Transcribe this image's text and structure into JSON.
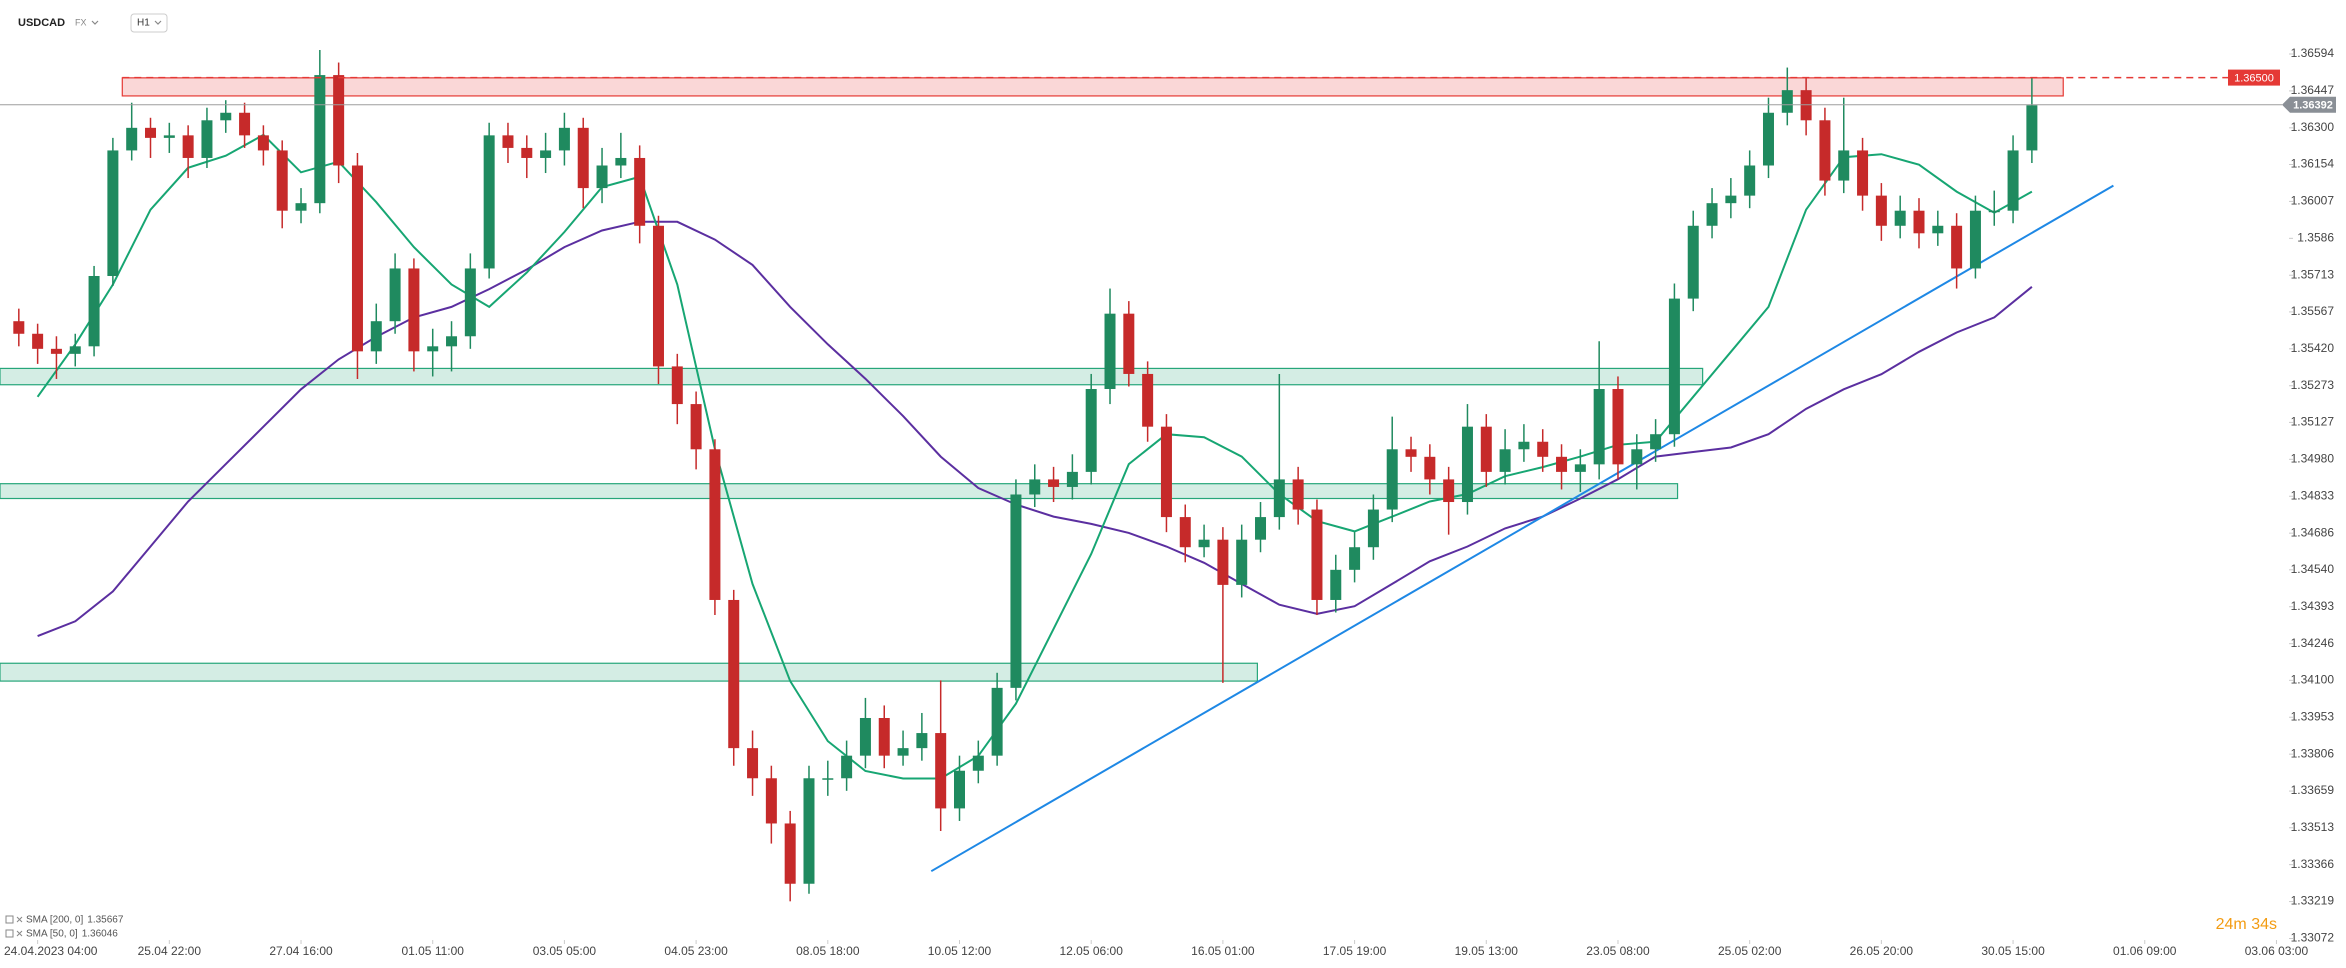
{
  "header": {
    "symbol": "USDCAD",
    "market": "FX",
    "timeframe": "H1"
  },
  "countdown": "24m 34s",
  "chart_data": {
    "type": "candlestick",
    "xlim": [
      -12,
      718
    ],
    "ylim": [
      1.33066,
      1.36809
    ],
    "yticks": [
      1.36594,
      1.36447,
      {
        "value": 1.363,
        "label": "1.36300"
      },
      1.36154,
      1.36007,
      1.3586,
      1.35713,
      1.35567,
      {
        "value": 1.3542,
        "label": "1.35420"
      },
      1.35273,
      1.35127,
      {
        "value": 1.3498,
        "label": "1.34980"
      },
      1.34833,
      1.34686,
      {
        "value": 1.3454,
        "label": "1.34540"
      },
      1.34393,
      1.34246,
      {
        "value": 1.341,
        "label": "1.34100"
      },
      1.33953,
      1.33806,
      1.33659,
      1.33513,
      1.33366,
      1.33219,
      1.33072
    ],
    "xticks": [
      {
        "value": 0,
        "label": "24.04.2023 04:00"
      },
      {
        "value": 42,
        "label": "25.04 22:00"
      },
      {
        "value": 84,
        "label": "27.04 16:00"
      },
      {
        "value": 126,
        "label": "01.05 11:00"
      },
      {
        "value": 168,
        "label": "03.05 05:00"
      },
      {
        "value": 210,
        "label": "04.05 23:00"
      },
      {
        "value": 252,
        "label": "08.05 18:00"
      },
      {
        "value": 294,
        "label": "10.05 12:00"
      },
      {
        "value": 336,
        "label": "12.05 06:00"
      },
      {
        "value": 378,
        "label": "16.05 01:00"
      },
      {
        "value": 420,
        "label": "17.05 19:00"
      },
      {
        "value": 462,
        "label": "19.05 13:00"
      },
      {
        "value": 504,
        "label": "23.05 08:00"
      },
      {
        "value": 546,
        "label": "25.05 02:00"
      },
      {
        "value": 588,
        "label": "26.05 20:00"
      },
      {
        "value": 630,
        "label": "30.05 15:00"
      },
      {
        "value": 672,
        "label": "01.06 09:00"
      },
      {
        "value": 714,
        "label": "03.06 03:00"
      }
    ],
    "up_color": "#1f8a5f",
    "down_color": "#c62a2a",
    "candles": {
      "x": [
        -6,
        0,
        6,
        12,
        18,
        24,
        30,
        36,
        42,
        48,
        54,
        60,
        66,
        72,
        78,
        84,
        90,
        96,
        102,
        108,
        114,
        120,
        126,
        132,
        138,
        144,
        150,
        156,
        162,
        168,
        174,
        180,
        186,
        192,
        198,
        204,
        210,
        216,
        222,
        228,
        234,
        240,
        246,
        252,
        258,
        264,
        270,
        276,
        282,
        288,
        294,
        300,
        306,
        312,
        318,
        324,
        330,
        336,
        342,
        348,
        354,
        360,
        366,
        372,
        378,
        384,
        390,
        396,
        402,
        408,
        414,
        420,
        426,
        432,
        438,
        444,
        450,
        456,
        462,
        468,
        474,
        480,
        486,
        492,
        498,
        504,
        510,
        516,
        522,
        528,
        534,
        540,
        546,
        552,
        558,
        564,
        570,
        576,
        582,
        588,
        594,
        600,
        606,
        612,
        618,
        624,
        630,
        636
      ],
      "open": [
        1.3553,
        1.3548,
        1.3542,
        1.354,
        1.3543,
        1.3571,
        1.3621,
        1.363,
        1.3626,
        1.3627,
        1.3618,
        1.3633,
        1.3636,
        1.3627,
        1.3621,
        1.3597,
        1.36,
        1.3651,
        1.3615,
        1.3541,
        1.3553,
        1.3574,
        1.3541,
        1.3543,
        1.3547,
        1.3574,
        1.3627,
        1.3622,
        1.3618,
        1.3621,
        1.363,
        1.3606,
        1.3615,
        1.3618,
        1.3591,
        1.3535,
        1.352,
        1.3502,
        1.3442,
        1.3383,
        1.3371,
        1.3353,
        1.3329,
        1.3371,
        1.3371,
        1.338,
        1.3395,
        1.338,
        1.3383,
        1.3389,
        1.3359,
        1.3374,
        1.338,
        1.3407,
        1.3484,
        1.349,
        1.3487,
        1.3493,
        1.3526,
        1.3556,
        1.3532,
        1.3511,
        1.3475,
        1.3463,
        1.3466,
        1.3448,
        1.3466,
        1.3475,
        1.349,
        1.3478,
        1.3442,
        1.3454,
        1.3463,
        1.3478,
        1.3502,
        1.3499,
        1.349,
        1.3481,
        1.3511,
        1.3493,
        1.3502,
        1.3505,
        1.3499,
        1.3493,
        1.3496,
        1.3526,
        1.3496,
        1.3502,
        1.3508,
        1.3562,
        1.3591,
        1.36,
        1.3603,
        1.3615,
        1.3636,
        1.3645,
        1.3633,
        1.3609,
        1.3621,
        1.3603,
        1.3591,
        1.3597,
        1.3588,
        1.3591,
        1.3574,
        1.3597,
        1.3597,
        1.3621
      ],
      "high": [
        1.3558,
        1.3552,
        1.3547,
        1.3548,
        1.3575,
        1.3626,
        1.364,
        1.3634,
        1.3632,
        1.3631,
        1.3638,
        1.3641,
        1.364,
        1.3631,
        1.3625,
        1.3606,
        1.3661,
        1.3656,
        1.362,
        1.356,
        1.358,
        1.3578,
        1.355,
        1.3553,
        1.358,
        1.3632,
        1.3632,
        1.3627,
        1.3628,
        1.3636,
        1.3634,
        1.3622,
        1.3628,
        1.3623,
        1.3595,
        1.354,
        1.3525,
        1.3506,
        1.3446,
        1.339,
        1.3376,
        1.3358,
        1.3376,
        1.3378,
        1.3386,
        1.3403,
        1.34,
        1.339,
        1.3397,
        1.341,
        1.338,
        1.3386,
        1.3413,
        1.349,
        1.3496,
        1.3495,
        1.35,
        1.3532,
        1.3566,
        1.3561,
        1.3537,
        1.3516,
        1.348,
        1.3472,
        1.3471,
        1.3472,
        1.3481,
        1.3532,
        1.3495,
        1.3482,
        1.346,
        1.3469,
        1.3484,
        1.3515,
        1.3507,
        1.3504,
        1.3495,
        1.352,
        1.3516,
        1.351,
        1.3512,
        1.351,
        1.3504,
        1.3502,
        1.3545,
        1.3531,
        1.3508,
        1.3514,
        1.3568,
        1.3597,
        1.3606,
        1.361,
        1.3621,
        1.3642,
        1.3654,
        1.365,
        1.3638,
        1.3642,
        1.3626,
        1.3608,
        1.3603,
        1.3602,
        1.3597,
        1.3596,
        1.3603,
        1.3605,
        1.3627,
        1.365
      ],
      "low": [
        1.3543,
        1.3536,
        1.353,
        1.3535,
        1.3539,
        1.3567,
        1.3617,
        1.3618,
        1.362,
        1.361,
        1.3614,
        1.3628,
        1.3622,
        1.3615,
        1.359,
        1.3592,
        1.3596,
        1.3608,
        1.353,
        1.3536,
        1.3548,
        1.3533,
        1.3531,
        1.3533,
        1.3542,
        1.357,
        1.3616,
        1.361,
        1.3612,
        1.3615,
        1.3598,
        1.36,
        1.361,
        1.3584,
        1.3528,
        1.3512,
        1.3494,
        1.3436,
        1.3376,
        1.3364,
        1.3345,
        1.3322,
        1.3325,
        1.3364,
        1.3366,
        1.3375,
        1.3375,
        1.3376,
        1.3378,
        1.335,
        1.3354,
        1.3369,
        1.3376,
        1.3402,
        1.3479,
        1.3481,
        1.3482,
        1.3488,
        1.352,
        1.3527,
        1.3505,
        1.3469,
        1.3457,
        1.3459,
        1.3409,
        1.3443,
        1.3461,
        1.347,
        1.3472,
        1.3436,
        1.3437,
        1.3449,
        1.3458,
        1.3473,
        1.3493,
        1.3484,
        1.3468,
        1.3476,
        1.3487,
        1.3488,
        1.3497,
        1.3493,
        1.3486,
        1.3485,
        1.349,
        1.349,
        1.3486,
        1.3497,
        1.3503,
        1.3557,
        1.3586,
        1.3594,
        1.3598,
        1.361,
        1.3631,
        1.3627,
        1.3603,
        1.3604,
        1.3597,
        1.3585,
        1.3586,
        1.3582,
        1.3583,
        1.3566,
        1.357,
        1.3591,
        1.3592,
        1.3616
      ],
      "close": [
        1.3548,
        1.3542,
        1.354,
        1.3543,
        1.3571,
        1.3621,
        1.363,
        1.3626,
        1.3627,
        1.3618,
        1.3633,
        1.3636,
        1.3627,
        1.3621,
        1.3597,
        1.36,
        1.3651,
        1.3615,
        1.3541,
        1.3553,
        1.3574,
        1.3541,
        1.3543,
        1.3547,
        1.3574,
        1.3627,
        1.3622,
        1.3618,
        1.3621,
        1.363,
        1.3606,
        1.3615,
        1.3618,
        1.3591,
        1.3535,
        1.352,
        1.3502,
        1.3442,
        1.3383,
        1.3371,
        1.3353,
        1.3329,
        1.3371,
        1.3371,
        1.338,
        1.3395,
        1.338,
        1.3383,
        1.3389,
        1.3359,
        1.3374,
        1.338,
        1.3407,
        1.3484,
        1.349,
        1.3487,
        1.3493,
        1.3526,
        1.3556,
        1.3532,
        1.3511,
        1.3475,
        1.3463,
        1.3466,
        1.3448,
        1.3466,
        1.3475,
        1.349,
        1.3478,
        1.3442,
        1.3454,
        1.3463,
        1.3478,
        1.3502,
        1.3499,
        1.349,
        1.3481,
        1.3511,
        1.3493,
        1.3502,
        1.3505,
        1.3499,
        1.3493,
        1.3496,
        1.3526,
        1.3496,
        1.3502,
        1.3508,
        1.3562,
        1.3591,
        1.36,
        1.3603,
        1.3615,
        1.3636,
        1.3645,
        1.3633,
        1.3609,
        1.3621,
        1.3603,
        1.3591,
        1.3597,
        1.3588,
        1.3591,
        1.3574,
        1.3597,
        1.3597,
        1.3621,
        1.3639
      ]
    },
    "indicators": [
      {
        "name": "SMA [200, 0]",
        "legend_value": 1.35667,
        "color": "#5b2fa0",
        "x": [
          0,
          12,
          24,
          36,
          48,
          60,
          72,
          84,
          96,
          108,
          120,
          132,
          144,
          156,
          168,
          180,
          192,
          204,
          216,
          228,
          240,
          252,
          264,
          276,
          288,
          300,
          312,
          324,
          336,
          348,
          360,
          372,
          384,
          396,
          408,
          420,
          432,
          444,
          456,
          468,
          480,
          492,
          504,
          516,
          528,
          540,
          552,
          564,
          576,
          588,
          600,
          612,
          624,
          636
        ],
        "values": [
          1.34276,
          1.34335,
          1.34454,
          1.34633,
          1.34812,
          1.34961,
          1.3511,
          1.35259,
          1.35378,
          1.35468,
          1.35545,
          1.35587,
          1.35658,
          1.35736,
          1.35825,
          1.35891,
          1.35926,
          1.35926,
          1.35855,
          1.35754,
          1.35587,
          1.35438,
          1.35301,
          1.35152,
          1.34991,
          1.34866,
          1.348,
          1.34752,
          1.34723,
          1.34687,
          1.34633,
          1.34568,
          1.34484,
          1.34401,
          1.34365,
          1.34395,
          1.34484,
          1.34574,
          1.34633,
          1.34705,
          1.34752,
          1.34824,
          1.34901,
          1.34991,
          1.35009,
          1.35027,
          1.3508,
          1.35181,
          1.35259,
          1.35319,
          1.35408,
          1.35485,
          1.35545,
          1.35667
        ]
      },
      {
        "name": "SMA [50, 0]",
        "legend_value": 1.36046,
        "color": "#17a673",
        "x": [
          0,
          12,
          24,
          36,
          48,
          60,
          72,
          84,
          96,
          108,
          120,
          132,
          144,
          156,
          168,
          180,
          192,
          204,
          216,
          228,
          240,
          252,
          264,
          276,
          288,
          300,
          312,
          324,
          336,
          348,
          360,
          372,
          384,
          396,
          408,
          420,
          432,
          444,
          456,
          468,
          480,
          492,
          504,
          516,
          528,
          540,
          552,
          564,
          576,
          588,
          600,
          612,
          624,
          636
        ],
        "values": [
          1.35229,
          1.35438,
          1.35676,
          1.35974,
          1.36141,
          1.36189,
          1.36272,
          1.36123,
          1.36165,
          1.36004,
          1.35825,
          1.35676,
          1.35587,
          1.35724,
          1.35885,
          1.36064,
          1.36105,
          1.35676,
          1.35021,
          1.34484,
          1.34097,
          1.33858,
          1.33739,
          1.33709,
          1.33709,
          1.33799,
          1.34007,
          1.34305,
          1.34603,
          1.34961,
          1.3508,
          1.35068,
          1.34991,
          1.34842,
          1.34734,
          1.34693,
          1.34752,
          1.34812,
          1.34842,
          1.34913,
          1.34949,
          1.34991,
          1.35038,
          1.3505,
          1.35229,
          1.35408,
          1.35587,
          1.35974,
          1.36183,
          1.36195,
          1.36153,
          1.36046,
          1.35962,
          1.36046
        ]
      }
    ],
    "zones": [
      {
        "low": 1.36427,
        "high": 1.36499,
        "x_start": 27,
        "x_end": 646,
        "color": "#e53935"
      },
      {
        "low": 1.35277,
        "high": 1.35342,
        "x_start": -12,
        "x_end": 531,
        "color": "#26a67a"
      },
      {
        "low": 1.34824,
        "high": 1.34883,
        "x_start": -12,
        "x_end": 523,
        "color": "#26a67a"
      },
      {
        "low": 1.34097,
        "high": 1.34168,
        "x_start": -12,
        "x_end": 389,
        "color": "#26a67a"
      }
    ],
    "trendline": {
      "x": [
        285,
        662
      ],
      "values": [
        1.3334,
        1.3607
      ],
      "color": "#1e88e5"
    },
    "price_lines": [
      {
        "value": 1.365,
        "label": "1.36500",
        "color": "#e53935",
        "dashed": true
      },
      {
        "value": 1.36392,
        "label": "1.36392",
        "color": "#9e9e9e",
        "dashed": false
      }
    ]
  }
}
